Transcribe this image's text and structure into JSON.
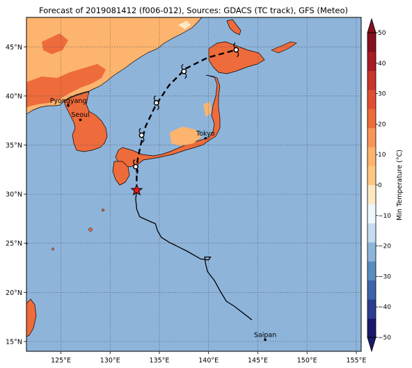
{
  "title": "Forecast of 2019081412 (f006-012), Sources: GDACS (TC track), GFS (Meteo)",
  "map": {
    "lon_range": [
      121.5,
      155.5
    ],
    "lat_range": [
      14,
      48
    ],
    "lon_ticks": [
      125,
      130,
      135,
      140,
      145,
      150,
      155
    ],
    "lon_tick_labels": [
      "125°E",
      "130°E",
      "135°E",
      "140°E",
      "145°E",
      "150°E",
      "155°E"
    ],
    "lat_ticks": [
      15,
      20,
      25,
      30,
      35,
      40,
      45
    ],
    "lat_tick_labels": [
      "15°N",
      "20°N",
      "25°N",
      "30°N",
      "35°N",
      "40°N",
      "45°N"
    ],
    "gridlines": true,
    "ocean_color": "#8eb4da"
  },
  "cities": [
    {
      "name": "Pyongyang",
      "lon": 125.75,
      "lat": 39.02
    },
    {
      "name": "Seoul",
      "lon": 126.98,
      "lat": 37.57
    },
    {
      "name": "Tokyo",
      "lon": 139.69,
      "lat": 35.69
    },
    {
      "name": "Saipan",
      "lon": 145.75,
      "lat": 15.18
    }
  ],
  "track": {
    "observed": [
      [
        144.4,
        17.2
      ],
      [
        142.6,
        18.6
      ],
      [
        141.8,
        19.1
      ],
      [
        141.2,
        20.1
      ],
      [
        140.6,
        21.2
      ],
      [
        139.9,
        22.1
      ],
      [
        139.7,
        22.9
      ],
      [
        139.6,
        23.6
      ],
      [
        140.2,
        23.6
      ],
      [
        140.0,
        23.3
      ],
      [
        139.2,
        23.4
      ],
      [
        137.8,
        24.2
      ],
      [
        136.6,
        24.8
      ],
      [
        136.0,
        25.1
      ],
      [
        135.2,
        25.6
      ],
      [
        134.8,
        26.3
      ],
      [
        134.6,
        27.0
      ],
      [
        134.1,
        27.2
      ],
      [
        133.0,
        27.7
      ],
      [
        132.7,
        28.5
      ],
      [
        132.6,
        29.5
      ],
      [
        132.7,
        30.4
      ]
    ],
    "forecast": [
      [
        132.7,
        30.4
      ],
      [
        132.7,
        32.2
      ],
      [
        132.8,
        33.6
      ],
      [
        133.1,
        35.0
      ],
      [
        133.6,
        36.9
      ],
      [
        134.6,
        39.0
      ],
      [
        136.0,
        41.1
      ],
      [
        137.7,
        42.8
      ],
      [
        139.9,
        43.9
      ],
      [
        142.8,
        44.7
      ]
    ],
    "current_position": [
      132.7,
      30.4
    ],
    "symbols": [
      [
        132.6,
        32.8
      ],
      [
        133.2,
        36.0
      ],
      [
        134.7,
        39.3
      ],
      [
        137.5,
        42.5
      ],
      [
        142.8,
        44.7
      ]
    ]
  },
  "colorbar": {
    "label": "Min Temperature (°C)",
    "ticks": [
      -50,
      -40,
      -30,
      -20,
      -10,
      0,
      10,
      20,
      30,
      40,
      50
    ],
    "colors": [
      "#1a1a6c",
      "#2d3d8f",
      "#3e64a8",
      "#5a8cc0",
      "#8eb4da",
      "#c4dcee",
      "#eef7fb",
      "#fde8c4",
      "#fdc784",
      "#fdb46e",
      "#f9955a",
      "#ee6b3b",
      "#e04f31",
      "#c7352b",
      "#a81d25",
      "#86101d"
    ]
  }
}
